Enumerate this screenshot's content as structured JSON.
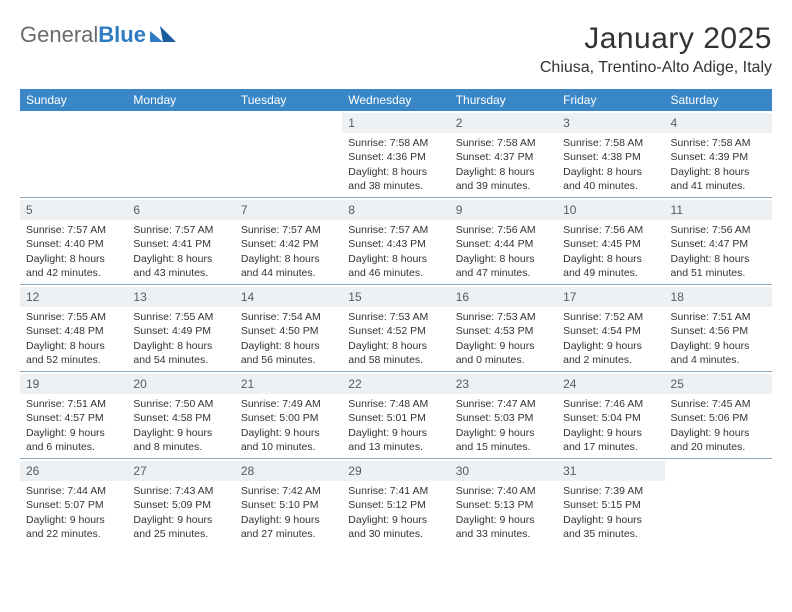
{
  "brand": {
    "part1": "General",
    "part2": "Blue"
  },
  "title": "January 2025",
  "location": "Chiusa, Trentino-Alto Adige, Italy",
  "colors": {
    "header_bg": "#3a87c7",
    "header_text": "#ffffff",
    "daynum_bg": "#eef1f4",
    "daynum_text": "#5a5a5a",
    "row_border": "#8ea9bf",
    "body_text": "#333333",
    "brand_blue": "#2e7cc3",
    "brand_gray": "#6b6b6b",
    "page_bg": "#ffffff"
  },
  "days_of_week": [
    "Sunday",
    "Monday",
    "Tuesday",
    "Wednesday",
    "Thursday",
    "Friday",
    "Saturday"
  ],
  "weeks": [
    [
      {
        "blank": true
      },
      {
        "blank": true
      },
      {
        "blank": true
      },
      {
        "num": "1",
        "sunrise": "Sunrise: 7:58 AM",
        "sunset": "Sunset: 4:36 PM",
        "daylight": "Daylight: 8 hours and 38 minutes."
      },
      {
        "num": "2",
        "sunrise": "Sunrise: 7:58 AM",
        "sunset": "Sunset: 4:37 PM",
        "daylight": "Daylight: 8 hours and 39 minutes."
      },
      {
        "num": "3",
        "sunrise": "Sunrise: 7:58 AM",
        "sunset": "Sunset: 4:38 PM",
        "daylight": "Daylight: 8 hours and 40 minutes."
      },
      {
        "num": "4",
        "sunrise": "Sunrise: 7:58 AM",
        "sunset": "Sunset: 4:39 PM",
        "daylight": "Daylight: 8 hours and 41 minutes."
      }
    ],
    [
      {
        "num": "5",
        "sunrise": "Sunrise: 7:57 AM",
        "sunset": "Sunset: 4:40 PM",
        "daylight": "Daylight: 8 hours and 42 minutes."
      },
      {
        "num": "6",
        "sunrise": "Sunrise: 7:57 AM",
        "sunset": "Sunset: 4:41 PM",
        "daylight": "Daylight: 8 hours and 43 minutes."
      },
      {
        "num": "7",
        "sunrise": "Sunrise: 7:57 AM",
        "sunset": "Sunset: 4:42 PM",
        "daylight": "Daylight: 8 hours and 44 minutes."
      },
      {
        "num": "8",
        "sunrise": "Sunrise: 7:57 AM",
        "sunset": "Sunset: 4:43 PM",
        "daylight": "Daylight: 8 hours and 46 minutes."
      },
      {
        "num": "9",
        "sunrise": "Sunrise: 7:56 AM",
        "sunset": "Sunset: 4:44 PM",
        "daylight": "Daylight: 8 hours and 47 minutes."
      },
      {
        "num": "10",
        "sunrise": "Sunrise: 7:56 AM",
        "sunset": "Sunset: 4:45 PM",
        "daylight": "Daylight: 8 hours and 49 minutes."
      },
      {
        "num": "11",
        "sunrise": "Sunrise: 7:56 AM",
        "sunset": "Sunset: 4:47 PM",
        "daylight": "Daylight: 8 hours and 51 minutes."
      }
    ],
    [
      {
        "num": "12",
        "sunrise": "Sunrise: 7:55 AM",
        "sunset": "Sunset: 4:48 PM",
        "daylight": "Daylight: 8 hours and 52 minutes."
      },
      {
        "num": "13",
        "sunrise": "Sunrise: 7:55 AM",
        "sunset": "Sunset: 4:49 PM",
        "daylight": "Daylight: 8 hours and 54 minutes."
      },
      {
        "num": "14",
        "sunrise": "Sunrise: 7:54 AM",
        "sunset": "Sunset: 4:50 PM",
        "daylight": "Daylight: 8 hours and 56 minutes."
      },
      {
        "num": "15",
        "sunrise": "Sunrise: 7:53 AM",
        "sunset": "Sunset: 4:52 PM",
        "daylight": "Daylight: 8 hours and 58 minutes."
      },
      {
        "num": "16",
        "sunrise": "Sunrise: 7:53 AM",
        "sunset": "Sunset: 4:53 PM",
        "daylight": "Daylight: 9 hours and 0 minutes."
      },
      {
        "num": "17",
        "sunrise": "Sunrise: 7:52 AM",
        "sunset": "Sunset: 4:54 PM",
        "daylight": "Daylight: 9 hours and 2 minutes."
      },
      {
        "num": "18",
        "sunrise": "Sunrise: 7:51 AM",
        "sunset": "Sunset: 4:56 PM",
        "daylight": "Daylight: 9 hours and 4 minutes."
      }
    ],
    [
      {
        "num": "19",
        "sunrise": "Sunrise: 7:51 AM",
        "sunset": "Sunset: 4:57 PM",
        "daylight": "Daylight: 9 hours and 6 minutes."
      },
      {
        "num": "20",
        "sunrise": "Sunrise: 7:50 AM",
        "sunset": "Sunset: 4:58 PM",
        "daylight": "Daylight: 9 hours and 8 minutes."
      },
      {
        "num": "21",
        "sunrise": "Sunrise: 7:49 AM",
        "sunset": "Sunset: 5:00 PM",
        "daylight": "Daylight: 9 hours and 10 minutes."
      },
      {
        "num": "22",
        "sunrise": "Sunrise: 7:48 AM",
        "sunset": "Sunset: 5:01 PM",
        "daylight": "Daylight: 9 hours and 13 minutes."
      },
      {
        "num": "23",
        "sunrise": "Sunrise: 7:47 AM",
        "sunset": "Sunset: 5:03 PM",
        "daylight": "Daylight: 9 hours and 15 minutes."
      },
      {
        "num": "24",
        "sunrise": "Sunrise: 7:46 AM",
        "sunset": "Sunset: 5:04 PM",
        "daylight": "Daylight: 9 hours and 17 minutes."
      },
      {
        "num": "25",
        "sunrise": "Sunrise: 7:45 AM",
        "sunset": "Sunset: 5:06 PM",
        "daylight": "Daylight: 9 hours and 20 minutes."
      }
    ],
    [
      {
        "num": "26",
        "sunrise": "Sunrise: 7:44 AM",
        "sunset": "Sunset: 5:07 PM",
        "daylight": "Daylight: 9 hours and 22 minutes."
      },
      {
        "num": "27",
        "sunrise": "Sunrise: 7:43 AM",
        "sunset": "Sunset: 5:09 PM",
        "daylight": "Daylight: 9 hours and 25 minutes."
      },
      {
        "num": "28",
        "sunrise": "Sunrise: 7:42 AM",
        "sunset": "Sunset: 5:10 PM",
        "daylight": "Daylight: 9 hours and 27 minutes."
      },
      {
        "num": "29",
        "sunrise": "Sunrise: 7:41 AM",
        "sunset": "Sunset: 5:12 PM",
        "daylight": "Daylight: 9 hours and 30 minutes."
      },
      {
        "num": "30",
        "sunrise": "Sunrise: 7:40 AM",
        "sunset": "Sunset: 5:13 PM",
        "daylight": "Daylight: 9 hours and 33 minutes."
      },
      {
        "num": "31",
        "sunrise": "Sunrise: 7:39 AM",
        "sunset": "Sunset: 5:15 PM",
        "daylight": "Daylight: 9 hours and 35 minutes."
      },
      {
        "blank": true
      }
    ]
  ]
}
